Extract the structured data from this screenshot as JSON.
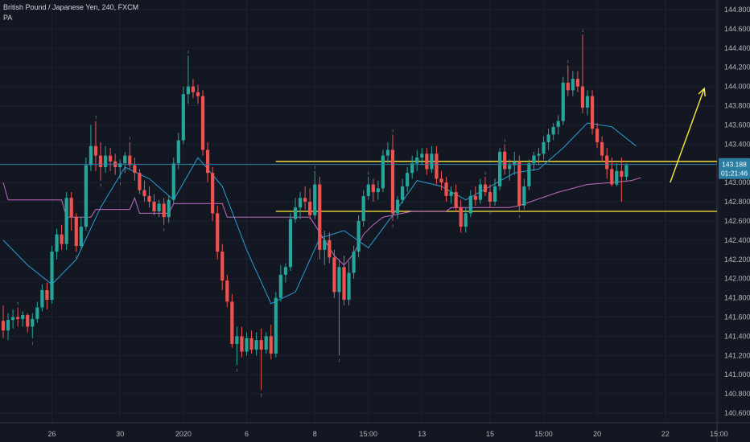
{
  "header": {
    "symbol_line": "British Pound / Japanese Yen, 240, FXCM",
    "indicator": "PA"
  },
  "price_badge": {
    "price": "143.188",
    "countdown": "01:21:46"
  },
  "colors": {
    "background": "#131722",
    "up": "#26a69a",
    "down": "#ef5350",
    "ma": "#2a9fd6",
    "pa": "#c06bc0",
    "level": "#ffeb3b",
    "last_price": "#2b7fa3",
    "axis_text": "#b2b5be"
  },
  "chart_data": {
    "type": "candlestick",
    "y_axis": {
      "min": 140.5,
      "max": 144.9,
      "ticks": [
        140.6,
        140.8,
        141.0,
        141.2,
        141.4,
        141.6,
        141.8,
        142.0,
        142.2,
        142.4,
        142.6,
        142.8,
        143.0,
        143.2,
        143.4,
        143.6,
        143.8,
        144.0,
        144.2,
        144.4,
        144.6,
        144.8
      ],
      "tick_labels": [
        "140.600",
        "140.800",
        "141.000",
        "141.200",
        "141.400",
        "141.600",
        "141.800",
        "142.000",
        "142.200",
        "142.400",
        "142.600",
        "142.800",
        "143.000",
        "143.200",
        "143.400",
        "143.600",
        "143.800",
        "144.000",
        "144.200",
        "144.400",
        "144.600",
        "144.800"
      ]
    },
    "x_axis": {
      "labels": [
        "26",
        "30",
        "2020",
        "6",
        "8",
        "15:00",
        "13",
        "15",
        "15:00",
        "20",
        "22",
        "15:00"
      ],
      "label_bar_index": [
        10,
        24,
        37,
        50,
        64,
        75,
        86,
        100,
        111,
        122,
        136,
        147
      ]
    },
    "bars": [
      {
        "o": 141.56,
        "h": 141.72,
        "l": 141.38,
        "c": 141.46
      },
      {
        "o": 141.46,
        "h": 141.64,
        "l": 141.36,
        "c": 141.57
      },
      {
        "o": 141.57,
        "h": 141.68,
        "l": 141.48,
        "c": 141.6
      },
      {
        "o": 141.6,
        "h": 141.7,
        "l": 141.5,
        "c": 141.58
      },
      {
        "o": 141.58,
        "h": 141.66,
        "l": 141.5,
        "c": 141.62
      },
      {
        "o": 141.62,
        "h": 141.64,
        "l": 141.44,
        "c": 141.5
      },
      {
        "o": 141.5,
        "h": 141.64,
        "l": 141.38,
        "c": 141.58
      },
      {
        "o": 141.58,
        "h": 141.76,
        "l": 141.54,
        "c": 141.7
      },
      {
        "o": 141.7,
        "h": 141.94,
        "l": 141.66,
        "c": 141.88
      },
      {
        "o": 141.88,
        "h": 141.96,
        "l": 141.68,
        "c": 141.78
      },
      {
        "o": 141.78,
        "h": 142.34,
        "l": 141.74,
        "c": 142.28
      },
      {
        "o": 142.28,
        "h": 142.52,
        "l": 142.2,
        "c": 142.46
      },
      {
        "o": 142.46,
        "h": 142.56,
        "l": 142.3,
        "c": 142.36
      },
      {
        "o": 142.36,
        "h": 142.9,
        "l": 142.3,
        "c": 142.84
      },
      {
        "o": 142.84,
        "h": 142.9,
        "l": 142.5,
        "c": 142.64
      },
      {
        "o": 142.64,
        "h": 142.68,
        "l": 142.28,
        "c": 142.34
      },
      {
        "o": 142.34,
        "h": 142.64,
        "l": 142.3,
        "c": 142.54
      },
      {
        "o": 142.54,
        "h": 143.26,
        "l": 142.5,
        "c": 143.18
      },
      {
        "o": 143.18,
        "h": 143.6,
        "l": 143.12,
        "c": 143.38
      },
      {
        "o": 143.38,
        "h": 143.64,
        "l": 143.12,
        "c": 143.28
      },
      {
        "o": 143.28,
        "h": 143.42,
        "l": 143.02,
        "c": 143.16
      },
      {
        "o": 143.16,
        "h": 143.38,
        "l": 143.1,
        "c": 143.28
      },
      {
        "o": 143.28,
        "h": 143.36,
        "l": 143.12,
        "c": 143.22
      },
      {
        "o": 143.22,
        "h": 143.3,
        "l": 143.08,
        "c": 143.16
      },
      {
        "o": 143.16,
        "h": 143.24,
        "l": 143.04,
        "c": 143.2
      },
      {
        "o": 143.2,
        "h": 143.32,
        "l": 143.1,
        "c": 143.28
      },
      {
        "o": 143.28,
        "h": 143.42,
        "l": 143.14,
        "c": 143.18
      },
      {
        "o": 143.18,
        "h": 143.26,
        "l": 143.02,
        "c": 143.1
      },
      {
        "o": 143.1,
        "h": 143.14,
        "l": 142.88,
        "c": 142.92
      },
      {
        "o": 142.92,
        "h": 143.02,
        "l": 142.8,
        "c": 142.86
      },
      {
        "o": 142.86,
        "h": 142.96,
        "l": 142.74,
        "c": 142.8
      },
      {
        "o": 142.8,
        "h": 142.88,
        "l": 142.66,
        "c": 142.7
      },
      {
        "o": 142.7,
        "h": 142.82,
        "l": 142.64,
        "c": 142.78
      },
      {
        "o": 142.78,
        "h": 142.84,
        "l": 142.56,
        "c": 142.64
      },
      {
        "o": 142.64,
        "h": 142.86,
        "l": 142.58,
        "c": 142.82
      },
      {
        "o": 142.82,
        "h": 143.26,
        "l": 142.78,
        "c": 143.2
      },
      {
        "o": 143.2,
        "h": 143.52,
        "l": 143.14,
        "c": 143.44
      },
      {
        "o": 143.44,
        "h": 144.0,
        "l": 143.4,
        "c": 143.92
      },
      {
        "o": 143.92,
        "h": 144.32,
        "l": 143.82,
        "c": 144.0
      },
      {
        "o": 144.0,
        "h": 144.08,
        "l": 143.88,
        "c": 143.94
      },
      {
        "o": 143.94,
        "h": 144.02,
        "l": 143.82,
        "c": 143.9
      },
      {
        "o": 143.9,
        "h": 143.96,
        "l": 143.28,
        "c": 143.34
      },
      {
        "o": 143.34,
        "h": 143.42,
        "l": 143.0,
        "c": 143.1
      },
      {
        "o": 143.1,
        "h": 143.16,
        "l": 142.6,
        "c": 142.68
      },
      {
        "o": 142.68,
        "h": 142.76,
        "l": 142.2,
        "c": 142.28
      },
      {
        "o": 142.28,
        "h": 142.36,
        "l": 141.88,
        "c": 141.98
      },
      {
        "o": 141.98,
        "h": 142.04,
        "l": 141.7,
        "c": 141.76
      },
      {
        "o": 141.76,
        "h": 141.84,
        "l": 141.28,
        "c": 141.32
      },
      {
        "o": 141.32,
        "h": 141.5,
        "l": 141.1,
        "c": 141.4
      },
      {
        "o": 141.4,
        "h": 141.5,
        "l": 141.18,
        "c": 141.24
      },
      {
        "o": 141.24,
        "h": 141.44,
        "l": 141.2,
        "c": 141.38
      },
      {
        "o": 141.38,
        "h": 141.46,
        "l": 141.22,
        "c": 141.26
      },
      {
        "o": 141.26,
        "h": 141.44,
        "l": 141.2,
        "c": 141.36
      },
      {
        "o": 141.36,
        "h": 141.48,
        "l": 140.84,
        "c": 141.26
      },
      {
        "o": 141.26,
        "h": 141.44,
        "l": 141.22,
        "c": 141.4
      },
      {
        "o": 141.4,
        "h": 141.52,
        "l": 141.16,
        "c": 141.22
      },
      {
        "o": 141.22,
        "h": 141.86,
        "l": 141.18,
        "c": 141.8
      },
      {
        "o": 141.8,
        "h": 142.14,
        "l": 141.76,
        "c": 142.04
      },
      {
        "o": 142.04,
        "h": 142.16,
        "l": 141.96,
        "c": 142.12
      },
      {
        "o": 142.12,
        "h": 142.68,
        "l": 142.08,
        "c": 142.62
      },
      {
        "o": 142.62,
        "h": 142.84,
        "l": 142.58,
        "c": 142.74
      },
      {
        "o": 142.74,
        "h": 142.9,
        "l": 142.62,
        "c": 142.84
      },
      {
        "o": 142.84,
        "h": 142.96,
        "l": 142.72,
        "c": 142.8
      },
      {
        "o": 142.8,
        "h": 142.94,
        "l": 142.62,
        "c": 142.66
      },
      {
        "o": 142.66,
        "h": 143.12,
        "l": 142.62,
        "c": 142.98
      },
      {
        "o": 142.98,
        "h": 143.06,
        "l": 142.2,
        "c": 142.3
      },
      {
        "o": 142.3,
        "h": 142.5,
        "l": 142.14,
        "c": 142.4
      },
      {
        "o": 142.4,
        "h": 142.48,
        "l": 142.16,
        "c": 142.22
      },
      {
        "o": 142.22,
        "h": 142.3,
        "l": 141.8,
        "c": 141.86
      },
      {
        "o": 141.86,
        "h": 142.2,
        "l": 141.2,
        "c": 142.12
      },
      {
        "o": 142.12,
        "h": 142.24,
        "l": 141.72,
        "c": 141.78
      },
      {
        "o": 141.78,
        "h": 142.18,
        "l": 141.72,
        "c": 142.06
      },
      {
        "o": 142.06,
        "h": 142.34,
        "l": 142.0,
        "c": 142.28
      },
      {
        "o": 142.28,
        "h": 142.66,
        "l": 142.22,
        "c": 142.6
      },
      {
        "o": 142.6,
        "h": 142.92,
        "l": 142.54,
        "c": 142.86
      },
      {
        "o": 142.86,
        "h": 143.06,
        "l": 142.82,
        "c": 142.98
      },
      {
        "o": 142.98,
        "h": 143.04,
        "l": 142.8,
        "c": 142.9
      },
      {
        "o": 142.9,
        "h": 143.02,
        "l": 142.82,
        "c": 142.94
      },
      {
        "o": 142.94,
        "h": 143.34,
        "l": 142.9,
        "c": 143.28
      },
      {
        "o": 143.28,
        "h": 143.42,
        "l": 143.2,
        "c": 143.34
      },
      {
        "o": 143.34,
        "h": 143.5,
        "l": 142.6,
        "c": 142.68
      },
      {
        "o": 142.68,
        "h": 142.86,
        "l": 142.62,
        "c": 142.82
      },
      {
        "o": 142.82,
        "h": 143.04,
        "l": 142.78,
        "c": 142.96
      },
      {
        "o": 142.96,
        "h": 143.16,
        "l": 142.9,
        "c": 143.1
      },
      {
        "o": 143.1,
        "h": 143.28,
        "l": 143.04,
        "c": 143.2
      },
      {
        "o": 143.2,
        "h": 143.34,
        "l": 143.12,
        "c": 143.26
      },
      {
        "o": 143.26,
        "h": 143.36,
        "l": 143.18,
        "c": 143.3
      },
      {
        "o": 143.3,
        "h": 143.36,
        "l": 143.08,
        "c": 143.14
      },
      {
        "o": 143.14,
        "h": 143.38,
        "l": 143.1,
        "c": 143.3
      },
      {
        "o": 143.3,
        "h": 143.38,
        "l": 142.98,
        "c": 143.04
      },
      {
        "o": 143.04,
        "h": 143.12,
        "l": 142.92,
        "c": 143.0
      },
      {
        "o": 143.0,
        "h": 143.06,
        "l": 142.8,
        "c": 142.86
      },
      {
        "o": 142.86,
        "h": 142.96,
        "l": 142.78,
        "c": 142.9
      },
      {
        "o": 142.9,
        "h": 142.98,
        "l": 142.7,
        "c": 142.74
      },
      {
        "o": 142.74,
        "h": 142.82,
        "l": 142.48,
        "c": 142.54
      },
      {
        "o": 142.54,
        "h": 142.74,
        "l": 142.48,
        "c": 142.68
      },
      {
        "o": 142.68,
        "h": 142.92,
        "l": 142.64,
        "c": 142.86
      },
      {
        "o": 142.86,
        "h": 142.96,
        "l": 142.76,
        "c": 142.82
      },
      {
        "o": 142.82,
        "h": 143.04,
        "l": 142.78,
        "c": 142.98
      },
      {
        "o": 142.98,
        "h": 143.06,
        "l": 142.86,
        "c": 142.9
      },
      {
        "o": 142.9,
        "h": 142.98,
        "l": 142.74,
        "c": 142.8
      },
      {
        "o": 142.8,
        "h": 143.04,
        "l": 142.76,
        "c": 142.96
      },
      {
        "o": 142.96,
        "h": 143.36,
        "l": 142.92,
        "c": 143.32
      },
      {
        "o": 143.32,
        "h": 143.4,
        "l": 143.08,
        "c": 143.14
      },
      {
        "o": 143.14,
        "h": 143.24,
        "l": 143.02,
        "c": 143.18
      },
      {
        "o": 143.18,
        "h": 143.32,
        "l": 143.08,
        "c": 143.22
      },
      {
        "o": 143.22,
        "h": 143.28,
        "l": 142.7,
        "c": 142.76
      },
      {
        "o": 142.76,
        "h": 143.04,
        "l": 142.72,
        "c": 142.96
      },
      {
        "o": 142.96,
        "h": 143.24,
        "l": 142.92,
        "c": 143.2
      },
      {
        "o": 143.2,
        "h": 143.32,
        "l": 143.12,
        "c": 143.28
      },
      {
        "o": 143.28,
        "h": 143.36,
        "l": 143.18,
        "c": 143.3
      },
      {
        "o": 143.3,
        "h": 143.48,
        "l": 143.24,
        "c": 143.42
      },
      {
        "o": 143.42,
        "h": 143.56,
        "l": 143.34,
        "c": 143.5
      },
      {
        "o": 143.5,
        "h": 143.62,
        "l": 143.44,
        "c": 143.58
      },
      {
        "o": 143.58,
        "h": 143.7,
        "l": 143.5,
        "c": 143.64
      },
      {
        "o": 143.64,
        "h": 144.1,
        "l": 143.6,
        "c": 144.04
      },
      {
        "o": 144.04,
        "h": 144.22,
        "l": 143.9,
        "c": 143.96
      },
      {
        "o": 143.96,
        "h": 144.16,
        "l": 143.9,
        "c": 144.08
      },
      {
        "o": 144.08,
        "h": 144.16,
        "l": 143.94,
        "c": 144.0
      },
      {
        "o": 144.0,
        "h": 144.54,
        "l": 143.72,
        "c": 143.78
      },
      {
        "o": 143.78,
        "h": 143.96,
        "l": 143.7,
        "c": 143.9
      },
      {
        "o": 143.9,
        "h": 143.96,
        "l": 143.5,
        "c": 143.56
      },
      {
        "o": 143.56,
        "h": 143.62,
        "l": 143.36,
        "c": 143.42
      },
      {
        "o": 143.42,
        "h": 143.48,
        "l": 143.22,
        "c": 143.28
      },
      {
        "o": 143.28,
        "h": 143.36,
        "l": 143.04,
        "c": 143.14
      },
      {
        "o": 143.14,
        "h": 143.26,
        "l": 142.96,
        "c": 142.98
      },
      {
        "o": 142.98,
        "h": 143.2,
        "l": 142.96,
        "c": 143.12
      },
      {
        "o": 143.12,
        "h": 143.26,
        "l": 142.8,
        "c": 143.06
      },
      {
        "o": 143.06,
        "h": 143.2,
        "l": 143.02,
        "c": 143.18
      }
    ],
    "ma_line": {
      "name": "",
      "points": [
        {
          "x": 0,
          "y": 142.4
        },
        {
          "x": 5,
          "y": 142.14
        },
        {
          "x": 10,
          "y": 141.94
        },
        {
          "x": 15,
          "y": 142.2
        },
        {
          "x": 20,
          "y": 142.74
        },
        {
          "x": 25,
          "y": 143.16
        },
        {
          "x": 30,
          "y": 143.04
        },
        {
          "x": 35,
          "y": 142.82
        },
        {
          "x": 40,
          "y": 143.26
        },
        {
          "x": 45,
          "y": 142.96
        },
        {
          "x": 50,
          "y": 142.3
        },
        {
          "x": 55,
          "y": 141.74
        },
        {
          "x": 60,
          "y": 141.86
        },
        {
          "x": 65,
          "y": 142.42
        },
        {
          "x": 70,
          "y": 142.5
        },
        {
          "x": 75,
          "y": 142.32
        },
        {
          "x": 80,
          "y": 142.66
        },
        {
          "x": 85,
          "y": 143.02
        },
        {
          "x": 90,
          "y": 142.96
        },
        {
          "x": 95,
          "y": 142.82
        },
        {
          "x": 100,
          "y": 142.96
        },
        {
          "x": 105,
          "y": 143.1
        },
        {
          "x": 110,
          "y": 143.14
        },
        {
          "x": 115,
          "y": 143.36
        },
        {
          "x": 120,
          "y": 143.62
        },
        {
          "x": 125,
          "y": 143.58
        },
        {
          "x": 130,
          "y": 143.38
        }
      ]
    },
    "pa_line": {
      "name": "PA",
      "points": [
        {
          "x": 0,
          "y": 143.0
        },
        {
          "x": 1,
          "y": 142.82
        },
        {
          "x": 12,
          "y": 142.82
        },
        {
          "x": 13,
          "y": 142.64
        },
        {
          "x": 18,
          "y": 142.64
        },
        {
          "x": 19,
          "y": 142.72
        },
        {
          "x": 26,
          "y": 142.72
        },
        {
          "x": 27,
          "y": 142.84
        },
        {
          "x": 28,
          "y": 142.68
        },
        {
          "x": 34,
          "y": 142.68
        },
        {
          "x": 35,
          "y": 142.78
        },
        {
          "x": 45,
          "y": 142.78
        },
        {
          "x": 46,
          "y": 142.64
        },
        {
          "x": 63,
          "y": 142.64
        },
        {
          "x": 64,
          "y": 142.56
        },
        {
          "x": 66,
          "y": 142.4
        },
        {
          "x": 68,
          "y": 142.24
        },
        {
          "x": 70,
          "y": 142.14
        },
        {
          "x": 72,
          "y": 142.26
        },
        {
          "x": 74,
          "y": 142.46
        },
        {
          "x": 76,
          "y": 142.56
        },
        {
          "x": 78,
          "y": 142.64
        },
        {
          "x": 82,
          "y": 142.68
        },
        {
          "x": 84,
          "y": 142.7
        },
        {
          "x": 91,
          "y": 142.7
        },
        {
          "x": 92,
          "y": 142.74
        },
        {
          "x": 104,
          "y": 142.74
        },
        {
          "x": 106,
          "y": 142.76
        },
        {
          "x": 114,
          "y": 142.9
        },
        {
          "x": 120,
          "y": 142.98
        },
        {
          "x": 125,
          "y": 143.0
        },
        {
          "x": 129,
          "y": 143.02
        },
        {
          "x": 131,
          "y": 143.05
        }
      ]
    },
    "levels": [
      {
        "price": 143.22,
        "from_bar": 56
      },
      {
        "price": 142.7,
        "from_bar": 56
      }
    ],
    "last_price": 143.188,
    "arrow": {
      "from_bar": 137,
      "from_price": 143.0,
      "to_bar": 144,
      "to_price": 143.98
    }
  }
}
